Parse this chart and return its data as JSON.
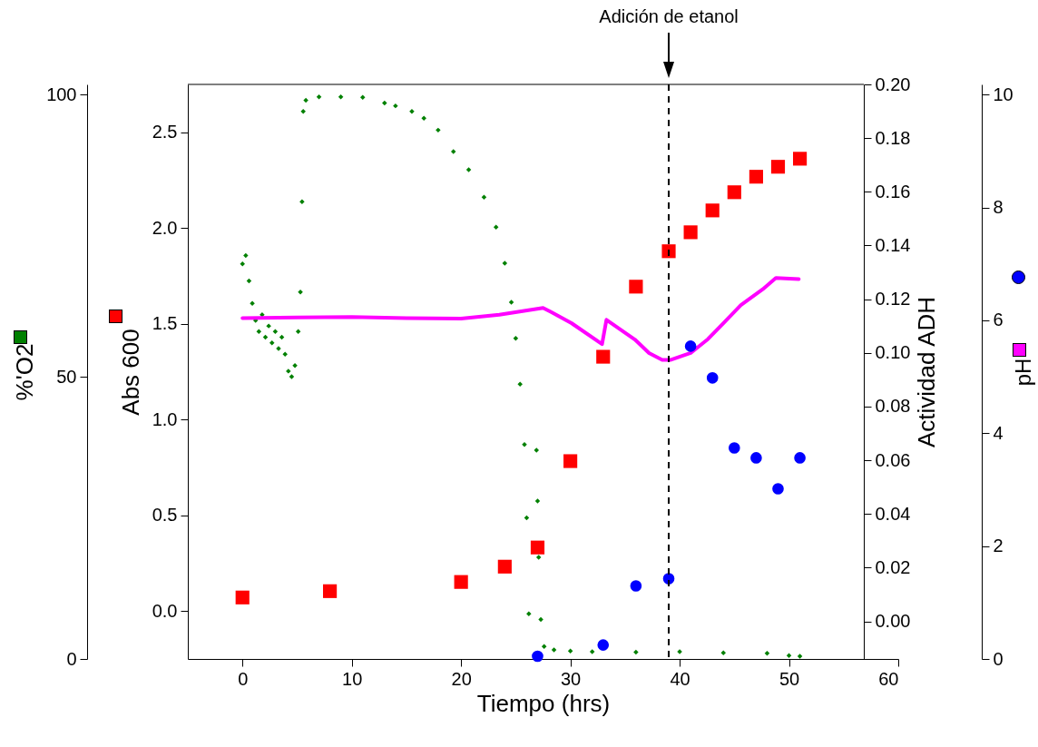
{
  "chart_data": [
    {
      "type": "scatter",
      "xlabel": "Tiempo (hrs)",
      "ylabel": "Abs 600",
      "y2label": "Actividad ADH",
      "xlim": [
        -5,
        60
      ],
      "xticks": [
        0,
        10,
        20,
        30,
        40,
        50,
        60
      ],
      "ylim": [
        -0.25,
        2.75
      ],
      "yticks": [
        {
          "value": 0,
          "label": "0.0"
        },
        0.5,
        {
          "value": 1,
          "label": "1.0"
        },
        1.5,
        {
          "value": 2,
          "label": "2.0"
        },
        2.5
      ],
      "y2lim": [
        -0.014,
        0.2
      ],
      "y2ticks": [
        {
          "value": 0,
          "label": "0.00"
        },
        0.02,
        0.04,
        0.06,
        0.08,
        {
          "value": 0.1,
          "label": "0.10"
        },
        0.12,
        0.14,
        0.16,
        0.18,
        {
          "value": 0.2,
          "label": "0.20"
        }
      ],
      "ref_lines": [
        {
          "axis": "x",
          "value": 39,
          "label": "Adición de etanol",
          "line_style": "dashed",
          "color": "#000000"
        }
      ],
      "series": [
        {
          "marker": "square",
          "color": "#ff0000",
          "x": [
            0,
            8,
            20,
            24,
            27,
            30,
            33,
            36,
            39,
            41,
            43,
            45,
            47,
            49,
            51
          ],
          "values": [
            0.071,
            0.104,
            0.152,
            0.232,
            0.332,
            0.783,
            1.328,
            1.694,
            1.879,
            1.978,
            2.092,
            2.187,
            2.268,
            2.32,
            2.362
          ]
        },
        {
          "axis": "y2",
          "marker": "circle",
          "color": "#0000ff",
          "x": [
            27,
            33,
            36,
            39,
            41,
            43,
            45,
            47,
            49,
            51
          ],
          "values": [
            -0.013,
            -0.0088,
            0.0132,
            0.0159,
            0.1025,
            0.0907,
            0.0646,
            0.0609,
            0.0494,
            0.0609
          ]
        }
      ]
    },
    {
      "type": "scatter",
      "ylabel": "%'O2",
      "y2label": "pH",
      "tick_labels": "y",
      "xlim": [
        -5,
        60
      ],
      "ylim": [
        0,
        101.8
      ],
      "yticks": [
        0,
        50,
        100
      ],
      "y2lim": [
        0,
        10.18
      ],
      "y2ticks": [
        0,
        2,
        4,
        6,
        8,
        10
      ],
      "series": [
        {
          "marker": "diamond",
          "color": "#008000",
          "x": [
            0,
            0.3,
            0.6,
            0.9,
            1.2,
            1.5,
            1.8,
            2.1,
            2.4,
            2.7,
            3.0,
            3.3,
            3.6,
            3.9,
            4.2,
            4.5,
            4.8,
            5.1,
            5.3,
            5.45,
            5.56,
            5.8,
            7,
            9,
            11,
            13,
            14,
            15.5,
            16.6,
            17.9,
            19.3,
            20.7,
            22.1,
            23.2,
            24,
            24.6,
            25,
            25.4,
            25.8,
            26.0,
            26.2,
            26.9,
            27.0,
            27.1,
            27.3,
            27.6,
            28.5,
            30,
            32,
            36,
            40,
            44,
            48,
            50,
            51
          ],
          "values": [
            70,
            71.5,
            67,
            63,
            60,
            58,
            61,
            57,
            59,
            56,
            58,
            55,
            57,
            54,
            51,
            50,
            52,
            58,
            65,
            81,
            97,
            99,
            99.6,
            99.6,
            99.5,
            98.5,
            98,
            97,
            95.8,
            93.7,
            89.9,
            86.7,
            81.8,
            76.5,
            70.1,
            63.2,
            56.8,
            48.7,
            38,
            25,
            8,
            37,
            28,
            18,
            7,
            2.2,
            1.6,
            1.4,
            1.3,
            1.2,
            1.3,
            1.1,
            1,
            0.6,
            0.5
          ]
        },
        {
          "type": "line",
          "axis": "y2",
          "color": "#ff00ff",
          "x": [
            0,
            5,
            10,
            15,
            20,
            23.5,
            27.5,
            28.2,
            30.1,
            32.9,
            33.3,
            35.9,
            37.2,
            38.4,
            39.2,
            41,
            42.6,
            44,
            45.6,
            47.6,
            48.8,
            50.9
          ],
          "values": [
            6.04,
            6.05,
            6.06,
            6.04,
            6.03,
            6.1,
            6.22,
            6.15,
            5.95,
            5.58,
            6.01,
            5.66,
            5.42,
            5.3,
            5.3,
            5.42,
            5.67,
            5.95,
            6.27,
            6.55,
            6.75,
            6.73
          ]
        }
      ]
    }
  ]
}
